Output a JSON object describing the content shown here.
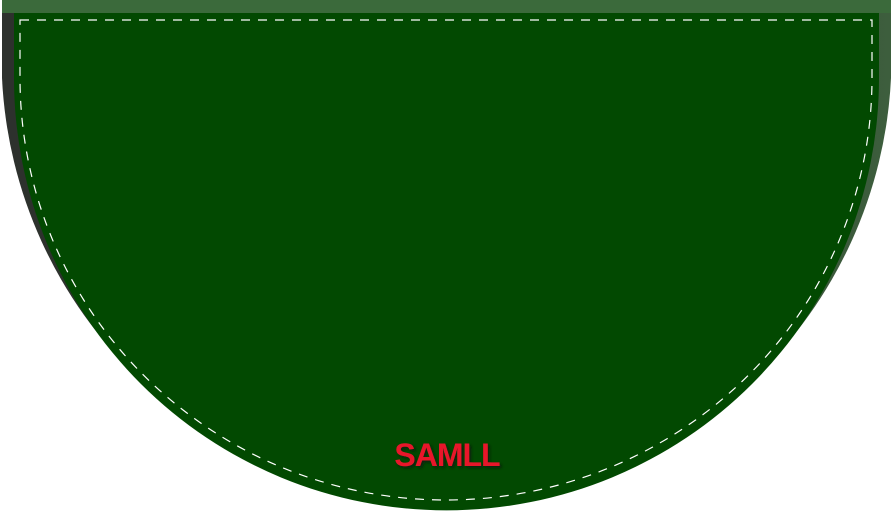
{
  "table": {
    "label": "SAMLL",
    "colors": {
      "felt": "#024901",
      "rail_top": "#3a6a3a",
      "rail_side": "#2e3a2e",
      "stitch": "#ffffff",
      "label": "#e8172b",
      "label_shadow": "#0a1a0a"
    }
  }
}
